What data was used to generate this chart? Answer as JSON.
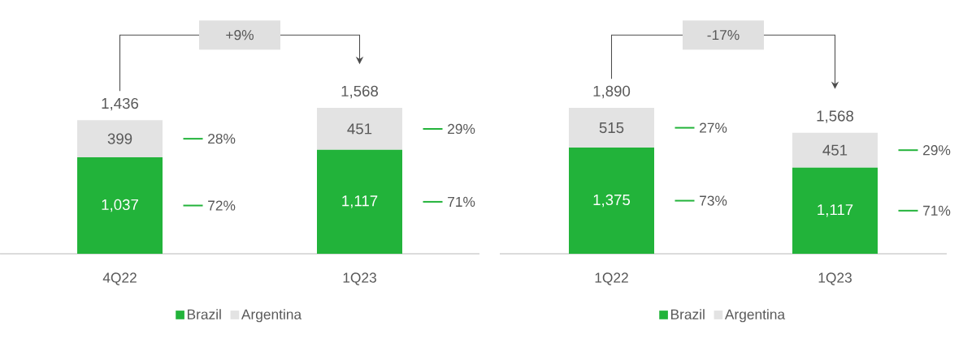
{
  "chart_data": [
    {
      "type": "bar",
      "stacked": true,
      "categories": [
        "4Q22",
        "1Q23"
      ],
      "series": [
        {
          "name": "Brazil",
          "color": "#22b33a",
          "values": [
            1037,
            1117
          ],
          "value_labels": [
            "1,037",
            "1,117"
          ]
        },
        {
          "name": "Argentina",
          "color": "#e3e3e3",
          "values": [
            399,
            451
          ],
          "value_labels": [
            "399",
            "451"
          ]
        }
      ],
      "totals": [
        "1,436",
        "1,568"
      ],
      "legend": "bottom",
      "annotations": [
        "+9%",
        "72%",
        "28%",
        "71%",
        "29%"
      ]
    },
    {
      "type": "bar",
      "stacked": true,
      "categories": [
        "1Q22",
        "1Q23"
      ],
      "series": [
        {
          "name": "Brazil",
          "color": "#22b33a",
          "values": [
            1375,
            1117
          ],
          "value_labels": [
            "1,375",
            "1,117"
          ]
        },
        {
          "name": "Argentina",
          "color": "#e3e3e3",
          "values": [
            515,
            451
          ],
          "value_labels": [
            "515",
            "451"
          ]
        }
      ],
      "totals": [
        "1,890",
        "1,568"
      ],
      "legend": "bottom",
      "annotations": [
        "-17%",
        "73%",
        "27%",
        "71%",
        "29%"
      ]
    }
  ]
}
